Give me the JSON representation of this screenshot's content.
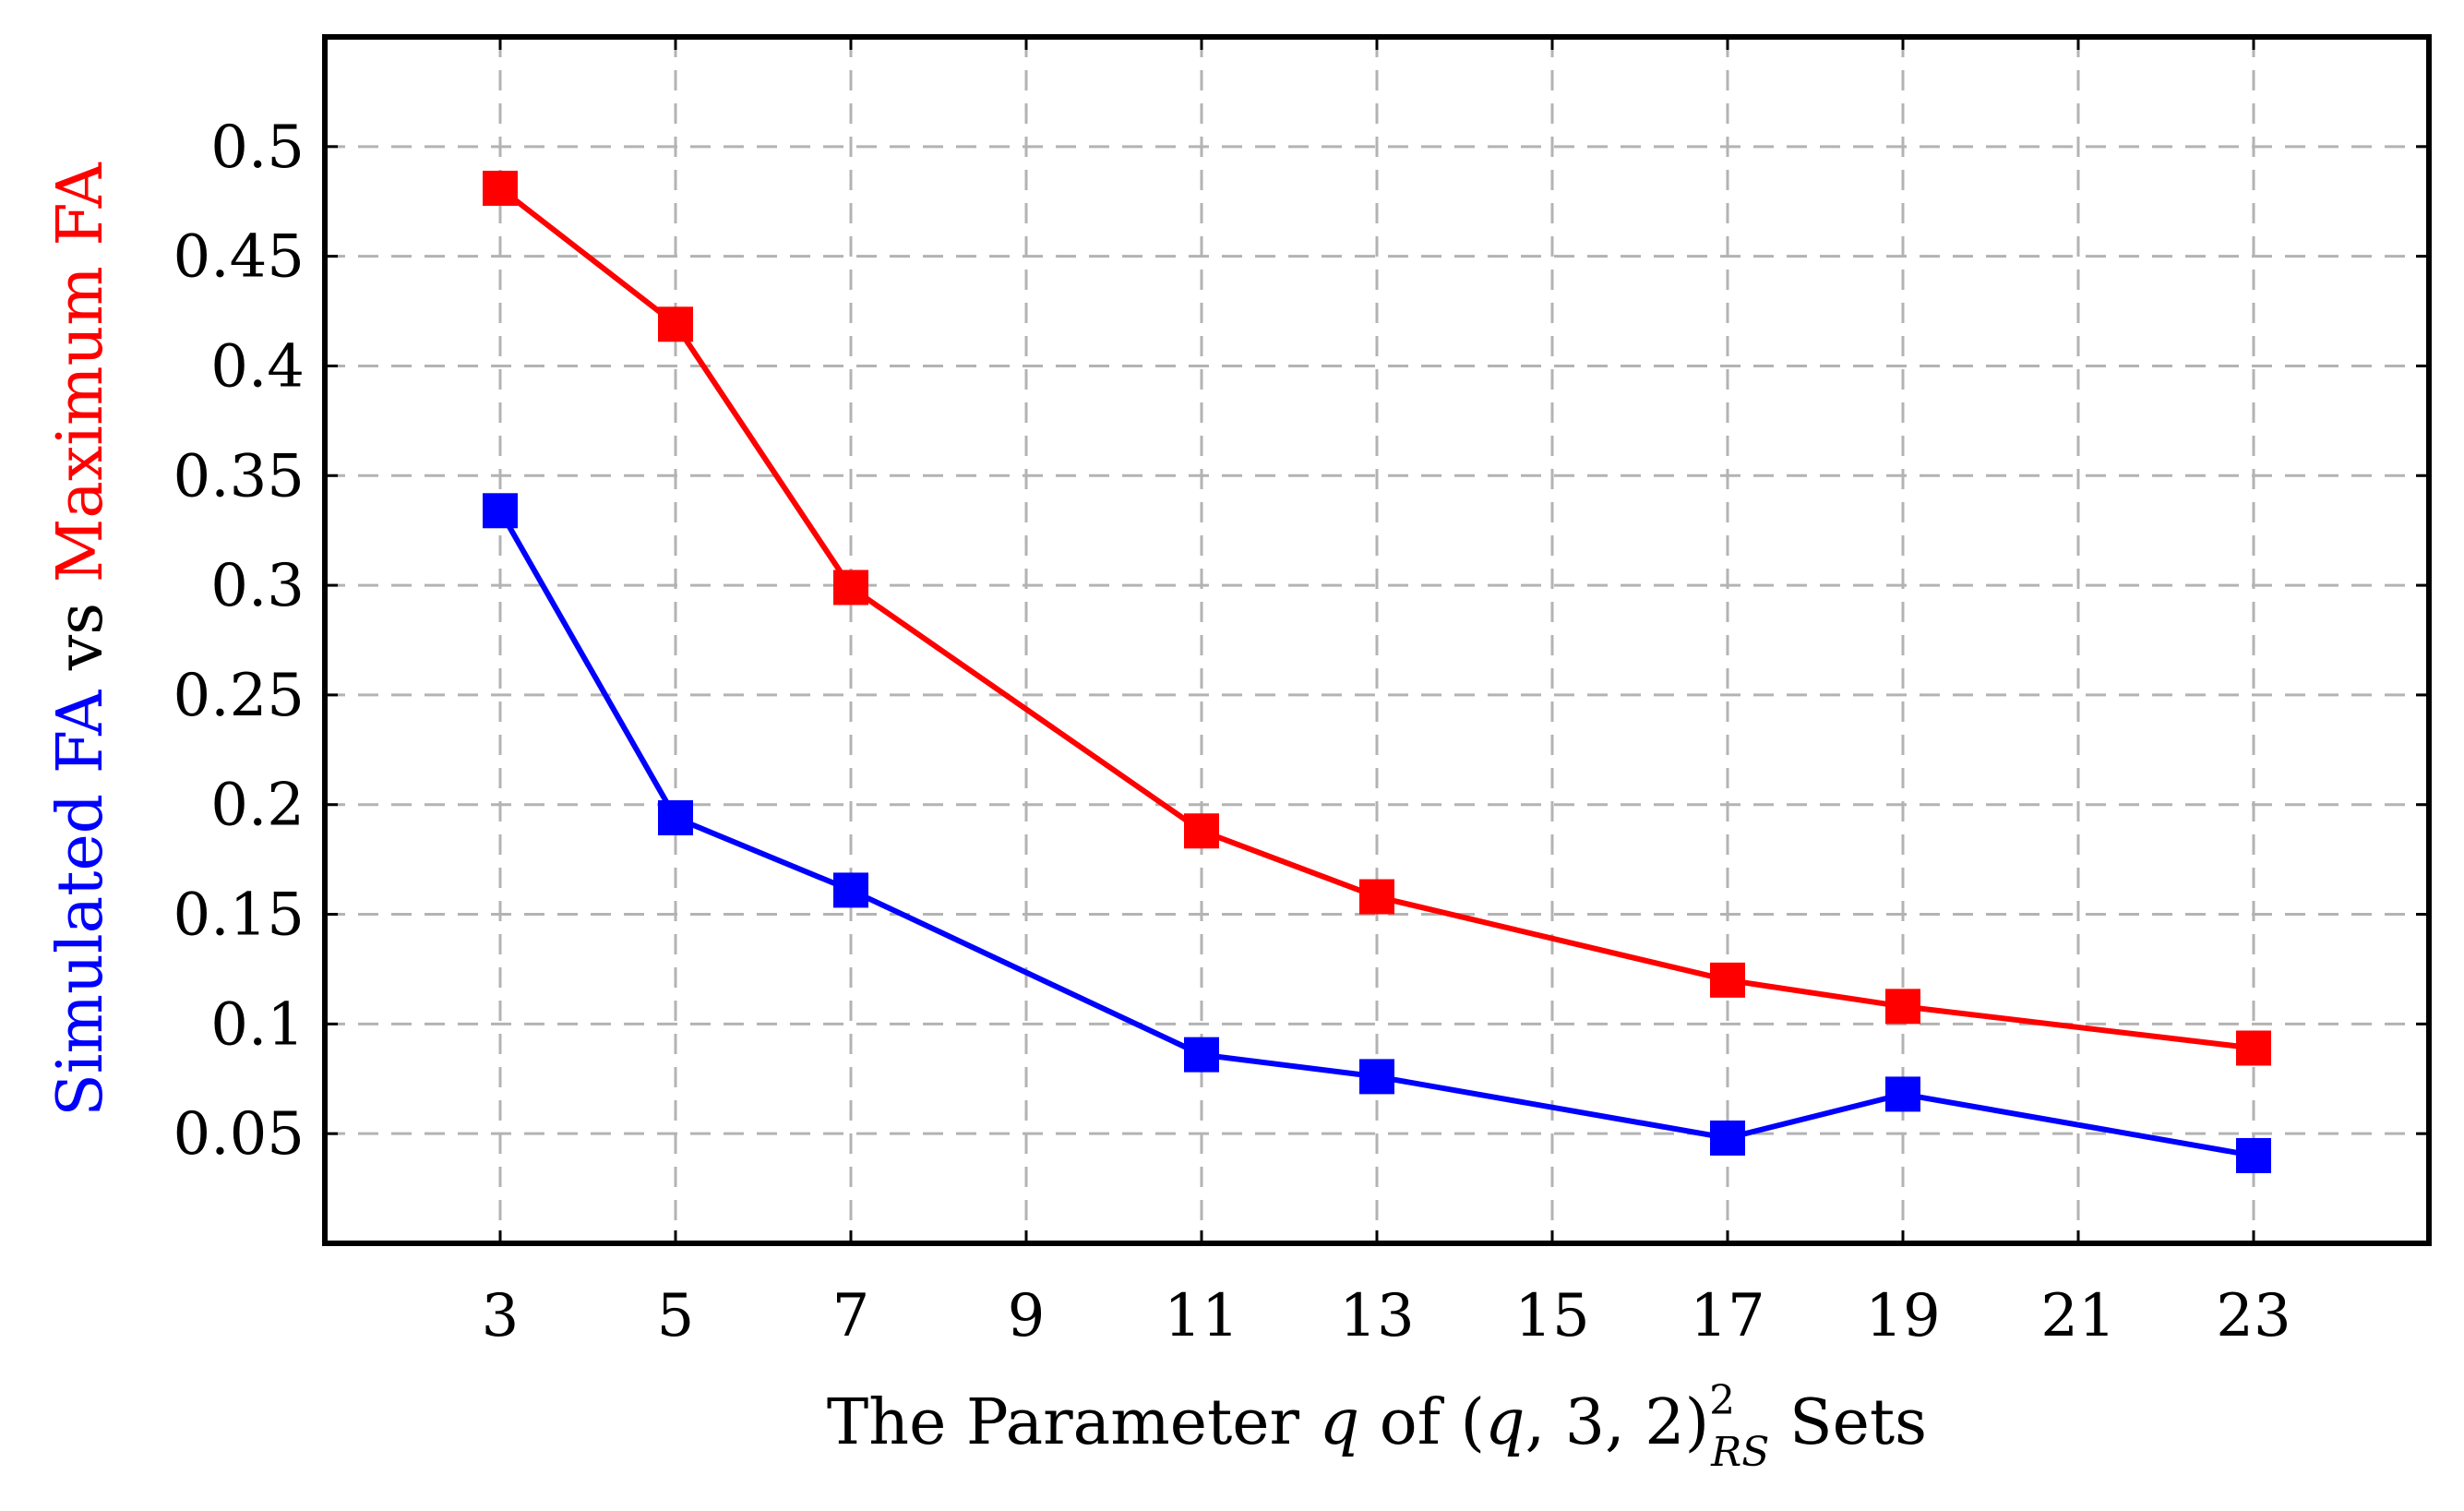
{
  "chart_data": {
    "type": "line",
    "title": "",
    "xlabel": {
      "prefix": "The Parameter ",
      "var": "q",
      "mid": " of (",
      "var2": "q",
      "tuple": ", 3, 2)",
      "sup": "2",
      "sub": "RS",
      "suffix": " Sets"
    },
    "ylabel": {
      "part1": "Simulated FA",
      "part1_color": "#0000ff",
      "part2": " vs ",
      "part2_color": "#000000",
      "part3": "Maximum FA",
      "part3_color": "#ff0000"
    },
    "xlim": [
      1,
      25
    ],
    "ylim": [
      0,
      0.55
    ],
    "xticks": [
      3,
      5,
      7,
      9,
      11,
      13,
      15,
      17,
      19,
      21,
      23
    ],
    "xtick_labels": [
      "3",
      "5",
      "7",
      "9",
      "11",
      "13",
      "15",
      "17",
      "19",
      "21",
      "23"
    ],
    "yticks": [
      0.05,
      0.1,
      0.15,
      0.2,
      0.25,
      0.3,
      0.35,
      0.4,
      0.45,
      0.5
    ],
    "ytick_labels": [
      "0.05",
      "0.1",
      "0.15",
      "0.2",
      "0.25",
      "0.3",
      "0.35",
      "0.4",
      "0.45",
      "0.5"
    ],
    "grid": true,
    "series": [
      {
        "name": "Simulated FA",
        "color": "#0000ff",
        "marker": "square",
        "x": [
          3,
          5,
          7,
          11,
          13,
          17,
          19,
          23
        ],
        "values": [
          0.334,
          0.194,
          0.161,
          0.086,
          0.076,
          0.048,
          0.068,
          0.04
        ]
      },
      {
        "name": "Maximum FA",
        "color": "#ff0000",
        "marker": "square",
        "x": [
          3,
          5,
          7,
          11,
          13,
          17,
          19,
          23
        ],
        "values": [
          0.481,
          0.419,
          0.299,
          0.188,
          0.158,
          0.12,
          0.108,
          0.089
        ]
      }
    ]
  }
}
